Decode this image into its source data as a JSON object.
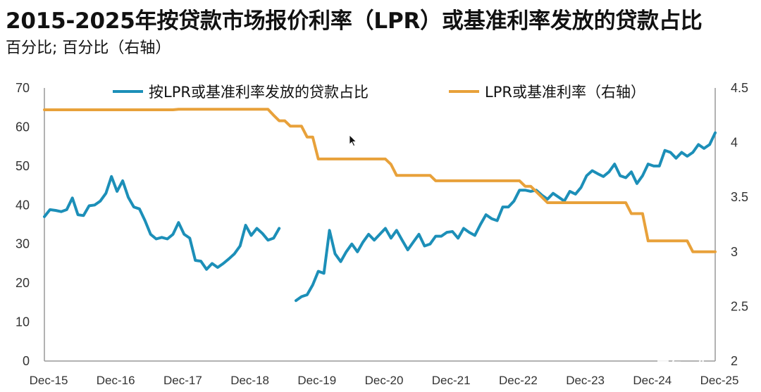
{
  "chart_data": {
    "type": "line",
    "title": "2015-2025年按贷款市场报价利率（LPR）或基准利率发放的贷款占比",
    "subtitle": "百分比; 百分比（右轴）",
    "x_tick_labels": [
      "Dec-15",
      "Dec-16",
      "Dec-17",
      "Dec-18",
      "Dec-19",
      "Dec-20",
      "Dec-21",
      "Dec-22",
      "Dec-23",
      "Dec-24",
      "Dec-25"
    ],
    "x_range": [
      0,
      120
    ],
    "y_left": {
      "range": [
        0,
        70
      ],
      "ticks": [
        "0",
        "10",
        "20",
        "30",
        "40",
        "50",
        "60",
        "70"
      ]
    },
    "y_right": {
      "range": [
        2,
        4.5
      ],
      "ticks": [
        "2",
        "2.5",
        "3",
        "3.5",
        "4",
        "4.5"
      ]
    },
    "colors": {
      "share": "#1c8fb8",
      "lpr": "#e8a13a",
      "axis": "#999999"
    },
    "series": [
      {
        "name": "按LPR或基准利率发放的贷款占比",
        "axis": "left",
        "color": "#1c8fb8",
        "segments": [
          [
            [
              0,
              37
            ],
            [
              1,
              38.8
            ],
            [
              2,
              38.6
            ],
            [
              3,
              38.3
            ],
            [
              4,
              38.8
            ],
            [
              5,
              41.8
            ],
            [
              6,
              37.5
            ],
            [
              7,
              37.3
            ],
            [
              8,
              39.8
            ],
            [
              9,
              40
            ],
            [
              10,
              41
            ],
            [
              11,
              43
            ],
            [
              12,
              47.3
            ],
            [
              13,
              43.5
            ],
            [
              14,
              46.2
            ],
            [
              15,
              42
            ],
            [
              16,
              39.5
            ],
            [
              17,
              39
            ],
            [
              18,
              36
            ],
            [
              19,
              32.5
            ],
            [
              20,
              31.3
            ],
            [
              21,
              31.7
            ],
            [
              22,
              31.3
            ],
            [
              23,
              32.5
            ],
            [
              24,
              35.5
            ],
            [
              25,
              32.5
            ],
            [
              26,
              31.5
            ],
            [
              27,
              25.8
            ],
            [
              28,
              25.6
            ],
            [
              29,
              23.5
            ],
            [
              30,
              25
            ],
            [
              31,
              24
            ],
            [
              32,
              25
            ],
            [
              33,
              26.2
            ],
            [
              34,
              27.5
            ],
            [
              35,
              29.5
            ],
            [
              36,
              34.8
            ],
            [
              37,
              32.2
            ],
            [
              38,
              34
            ],
            [
              39,
              32.7
            ],
            [
              40,
              31
            ],
            [
              41,
              31.5
            ],
            [
              42,
              34
            ]
          ],
          [
            [
              45,
              15.5
            ],
            [
              46,
              16.5
            ],
            [
              47,
              17
            ],
            [
              48,
              19.5
            ],
            [
              49,
              23
            ],
            [
              50,
              22.5
            ],
            [
              51,
              33.5
            ],
            [
              52,
              27.5
            ],
            [
              53,
              25.5
            ],
            [
              54,
              28
            ],
            [
              55,
              30
            ],
            [
              56,
              28
            ],
            [
              57,
              30.5
            ],
            [
              58,
              32.5
            ],
            [
              59,
              31
            ],
            [
              60,
              32.5
            ],
            [
              61,
              34
            ],
            [
              62,
              31.5
            ],
            [
              63,
              33.5
            ],
            [
              64,
              31
            ],
            [
              65,
              28.5
            ],
            [
              66,
              30.5
            ],
            [
              67,
              32.5
            ],
            [
              68,
              29.5
            ],
            [
              69,
              30
            ],
            [
              70,
              32
            ],
            [
              71,
              32
            ],
            [
              72,
              33
            ],
            [
              73,
              33.2
            ],
            [
              74,
              31.5
            ],
            [
              75,
              34
            ],
            [
              76,
              33
            ],
            [
              77,
              32.2
            ],
            [
              78,
              35
            ],
            [
              79,
              37.5
            ],
            [
              80,
              36.5
            ],
            [
              81,
              36
            ],
            [
              82,
              39.5
            ],
            [
              83,
              39.5
            ],
            [
              84,
              41
            ],
            [
              85,
              43.8
            ],
            [
              86,
              43.8
            ],
            [
              87,
              43.5
            ],
            [
              88,
              43.8
            ],
            [
              89,
              42.5
            ],
            [
              90,
              41.5
            ],
            [
              91,
              43
            ],
            [
              92,
              42
            ],
            [
              93,
              41
            ],
            [
              94,
              43.5
            ],
            [
              95,
              42.8
            ],
            [
              96,
              44.5
            ],
            [
              97,
              47.5
            ],
            [
              98,
              48.8
            ],
            [
              99,
              48
            ],
            [
              100,
              47.3
            ],
            [
              101,
              48.5
            ],
            [
              102,
              50.5
            ],
            [
              103,
              47.5
            ],
            [
              104,
              47
            ],
            [
              105,
              48.5
            ],
            [
              106,
              45.5
            ],
            [
              107,
              47.5
            ],
            [
              108,
              50.5
            ],
            [
              109,
              50
            ],
            [
              110,
              50
            ],
            [
              111,
              54
            ],
            [
              112,
              53.5
            ],
            [
              113,
              52
            ],
            [
              114,
              53.5
            ],
            [
              115,
              52.5
            ],
            [
              116,
              53.5
            ],
            [
              117,
              55.5
            ],
            [
              118,
              54.5
            ],
            [
              119,
              55.5
            ],
            [
              120,
              58.5
            ]
          ]
        ]
      },
      {
        "name": "LPR或基准利率（右轴）",
        "axis": "right",
        "color": "#e8a13a",
        "segments": [
          [
            [
              0,
              4.3
            ],
            [
              23,
              4.3
            ],
            [
              24,
              4.305
            ],
            [
              40,
              4.305
            ],
            [
              41,
              4.25
            ],
            [
              42,
              4.2
            ],
            [
              43,
              4.2
            ],
            [
              44,
              4.15
            ],
            [
              46,
              4.15
            ],
            [
              47,
              4.05
            ],
            [
              48,
              4.05
            ],
            [
              49,
              3.85
            ],
            [
              61,
              3.85
            ],
            [
              62,
              3.8
            ],
            [
              63,
              3.7
            ],
            [
              69,
              3.7
            ],
            [
              70,
              3.65
            ],
            [
              85,
              3.65
            ],
            [
              86,
              3.6
            ],
            [
              87,
              3.6
            ],
            [
              88,
              3.55
            ],
            [
              89,
              3.5
            ],
            [
              90,
              3.45
            ],
            [
              104,
              3.45
            ],
            [
              105,
              3.35
            ],
            [
              107,
              3.35
            ],
            [
              108,
              3.1
            ],
            [
              115,
              3.1
            ],
            [
              116,
              3.0
            ],
            [
              120,
              3.0
            ]
          ]
        ]
      }
    ],
    "legend": {
      "position": "top",
      "entries": [
        "按LPR或基准利率发放的贷款占比",
        "LPR或基准利率（右轴）"
      ]
    }
  },
  "watermark": "豆包AI生成"
}
